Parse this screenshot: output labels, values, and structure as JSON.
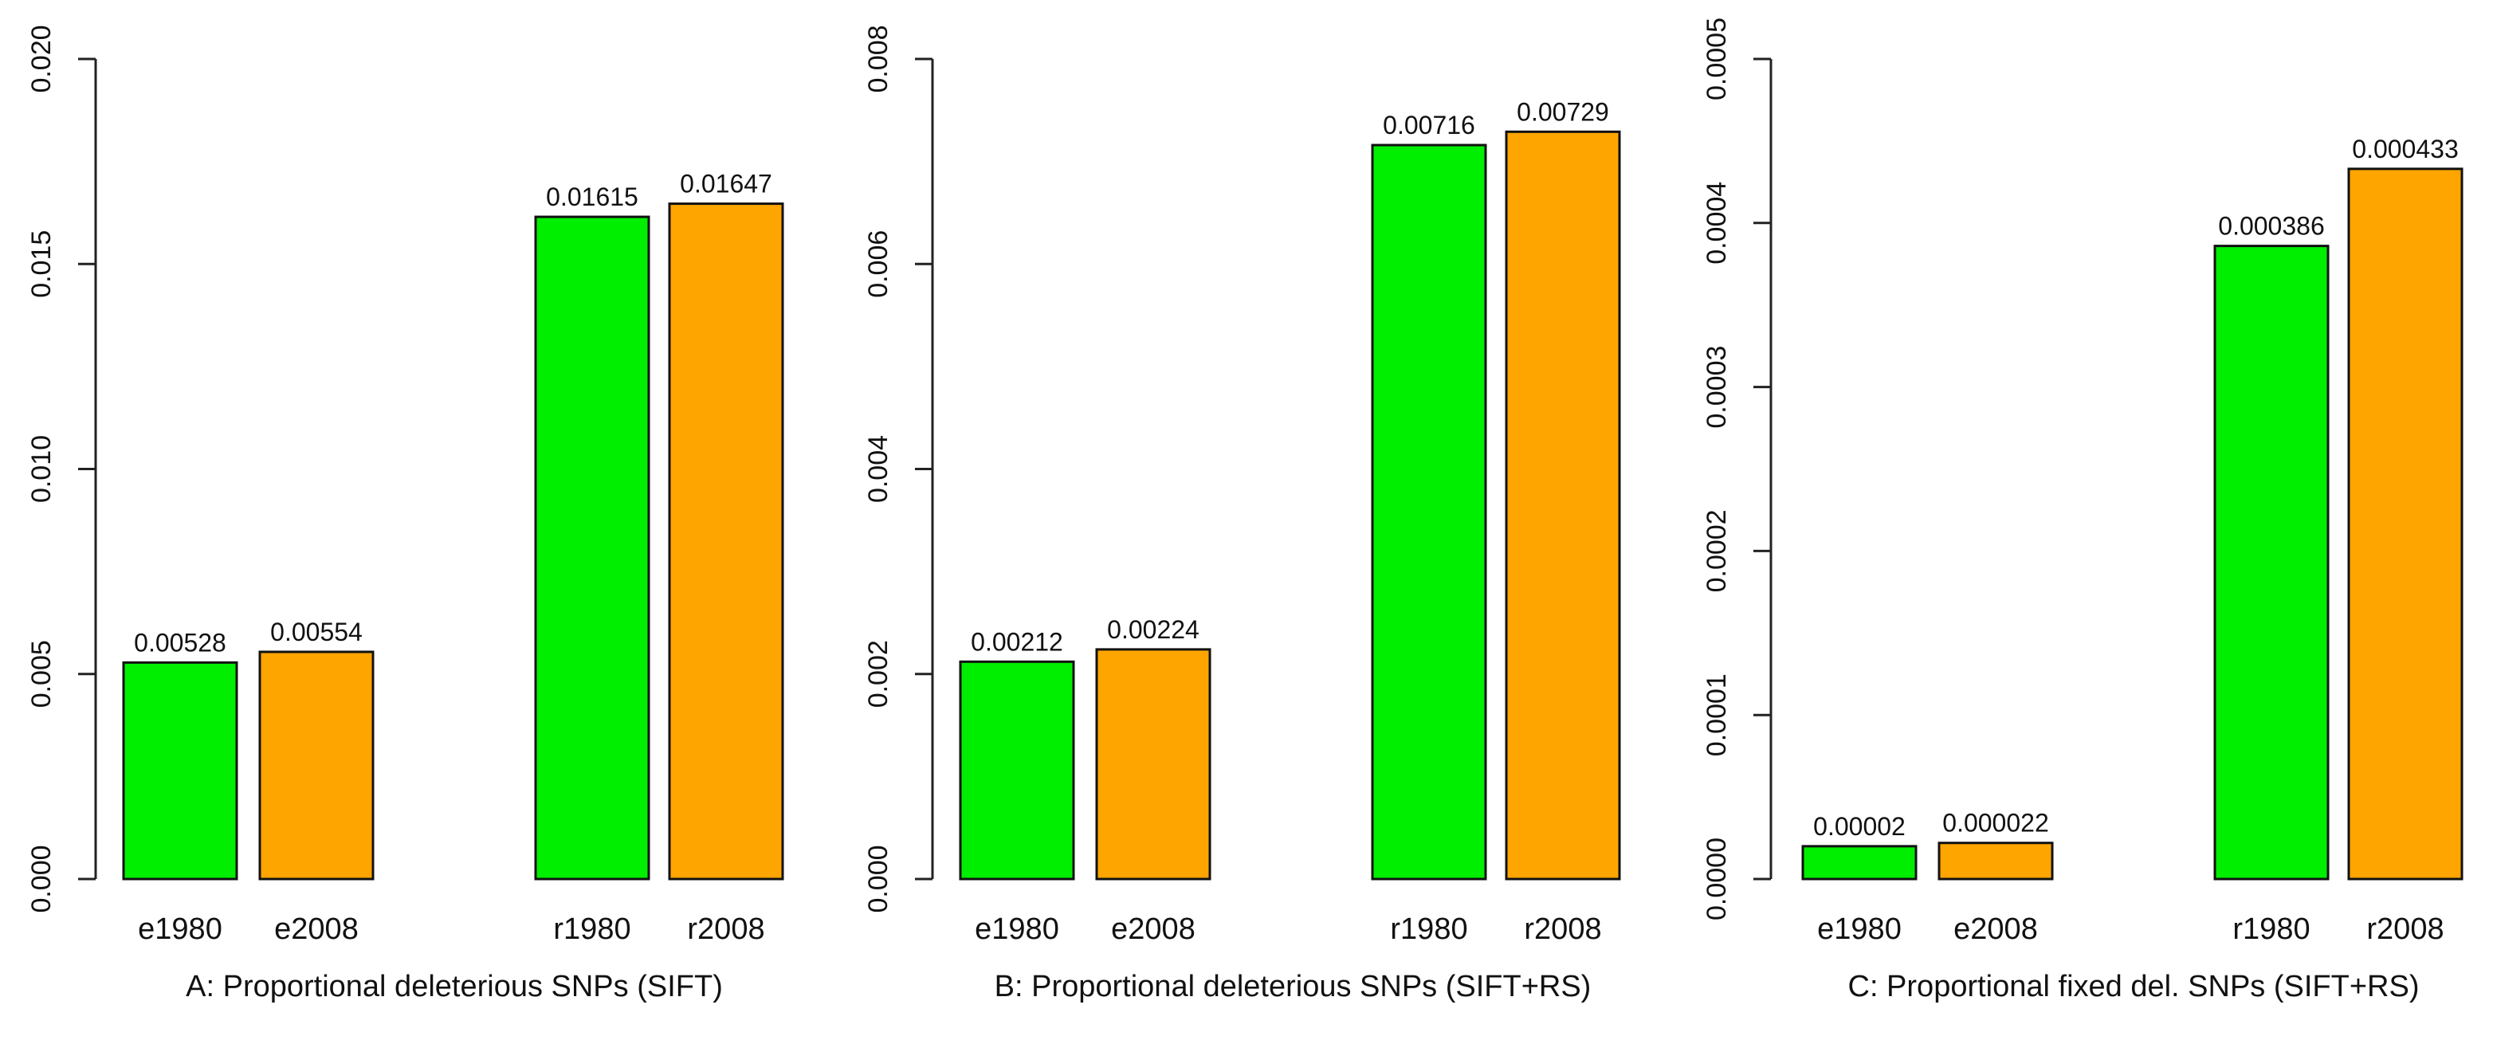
{
  "chart_data": [
    {
      "type": "bar",
      "panel": "A",
      "title": "A: Proportional deleterious SNPs (SIFT)",
      "xlabel": "A: Proportional deleterious SNPs (SIFT)",
      "ylabel": "",
      "ylim": [
        0,
        0.02
      ],
      "yticks": [
        0,
        0.005,
        0.01,
        0.015,
        0.02
      ],
      "ytick_labels": [
        "0.000",
        "0.005",
        "0.010",
        "0.015",
        "0.020"
      ],
      "categories": [
        "e1980",
        "e2008",
        "r1980",
        "r2008"
      ],
      "values": [
        0.00528,
        0.00554,
        0.01615,
        0.01647
      ],
      "data_labels": [
        "0.00528",
        "0.00554",
        "0.01615",
        "0.01647"
      ],
      "colors": [
        "#00ee00",
        "#ffa500",
        "#00ee00",
        "#ffa500"
      ]
    },
    {
      "type": "bar",
      "panel": "B",
      "title": "B: Proportional deleterious SNPs (SIFT+RS)",
      "xlabel": "B: Proportional deleterious SNPs (SIFT+RS)",
      "ylabel": "",
      "ylim": [
        0,
        0.008
      ],
      "yticks": [
        0,
        0.002,
        0.004,
        0.006,
        0.008
      ],
      "ytick_labels": [
        "0.000",
        "0.002",
        "0.004",
        "0.006",
        "0.008"
      ],
      "categories": [
        "e1980",
        "e2008",
        "r1980",
        "r2008"
      ],
      "values": [
        0.00212,
        0.00224,
        0.00716,
        0.00729
      ],
      "data_labels": [
        "0.00212",
        "0.00224",
        "0.00716",
        "0.00729"
      ],
      "colors": [
        "#00ee00",
        "#ffa500",
        "#00ee00",
        "#ffa500"
      ]
    },
    {
      "type": "bar",
      "panel": "C",
      "title": "C: Proportional fixed del. SNPs (SIFT+RS)",
      "xlabel": "C: Proportional fixed del. SNPs (SIFT+RS)",
      "ylabel": "",
      "ylim": [
        0,
        0.0005
      ],
      "yticks": [
        0,
        0.0001,
        0.0002,
        0.0003,
        0.0004,
        0.0005
      ],
      "ytick_labels": [
        "0.0000",
        "0.0001",
        "0.0002",
        "0.0003",
        "0.0004",
        "0.0005"
      ],
      "categories": [
        "e1980",
        "e2008",
        "r1980",
        "r2008"
      ],
      "values": [
        2e-05,
        2.2e-05,
        0.000386,
        0.000433
      ],
      "data_labels": [
        "0.00002",
        "0.000022",
        "0.000386",
        "0.000433"
      ],
      "colors": [
        "#00ee00",
        "#ffa500",
        "#00ee00",
        "#ffa500"
      ]
    }
  ]
}
